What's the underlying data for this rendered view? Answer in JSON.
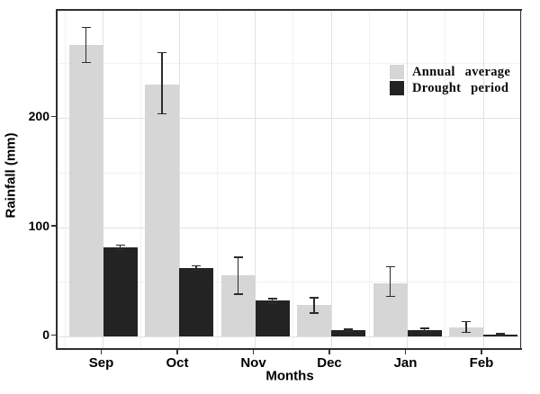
{
  "chart_data": {
    "type": "bar",
    "title": "",
    "xlabel": "Months",
    "ylabel": "Rainfall (mm)",
    "categories": [
      "Sep",
      "Oct",
      "Nov",
      "Dec",
      "Jan",
      "Feb"
    ],
    "series": [
      {
        "name": "Annual average",
        "color": "#d6d6d6",
        "values": [
          267,
          231,
          56,
          29,
          49,
          9
        ],
        "error_low": [
          251,
          204,
          39,
          22,
          37,
          4
        ],
        "error_high": [
          283,
          260,
          73,
          36,
          64,
          14
        ]
      },
      {
        "name": "Drought period",
        "color": "#232323",
        "values": [
          82,
          63,
          33,
          6,
          6,
          2
        ],
        "error_low": [
          80,
          61,
          31,
          5,
          4,
          1
        ],
        "error_high": [
          84,
          65,
          35,
          7,
          8,
          3
        ]
      }
    ],
    "yticks": [
      0,
      100,
      200
    ],
    "ylim": [
      0,
      298
    ],
    "grid": "major and minor gridlines, light gray on white",
    "legend_position": "inside top-right",
    "error_bars": true
  },
  "appearance": {
    "panel_border_color": "#2f2f2f",
    "grid_major_color": "#e2e2e2",
    "grid_minor_color": "#f1f1f1",
    "error_bar_color": "#2b2b2b",
    "text_color": "#000000",
    "background": "#ffffff"
  }
}
